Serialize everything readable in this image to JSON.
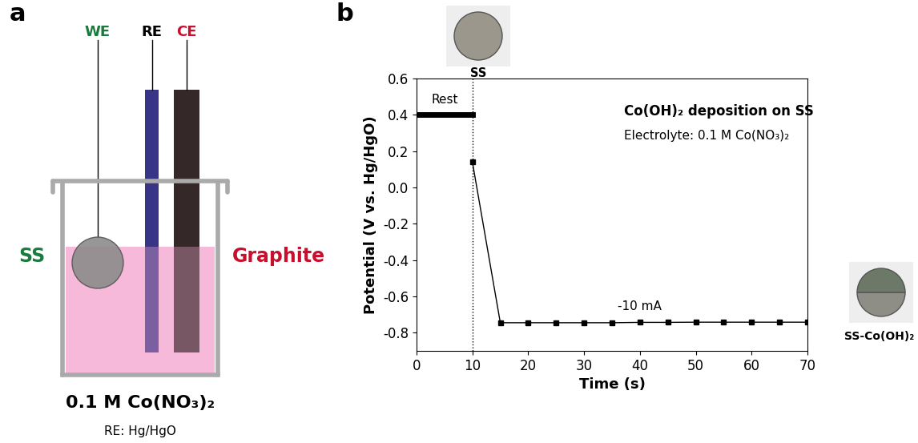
{
  "panel_a": {
    "label": "a",
    "electrode_labels": [
      "WE",
      "RE",
      "CE"
    ],
    "working_electrode": "SS",
    "counter_electrode": "Graphite",
    "electrolyte": "0.1 M Co(NO₃)₂",
    "reference": "RE: Hg/HgO"
  },
  "chart_data": {
    "panel_label": "b",
    "type": "line",
    "title": "Co(OH)₂ deposition on SS",
    "subtitle": "Electrolyte: 0.1 M Co(NO₃)₂",
    "x_label": "Time (s)",
    "y_label": "Potential (V vs. Hg/HgO)",
    "xlim": [
      0,
      70
    ],
    "ylim": [
      -0.9,
      0.6
    ],
    "xticks": [
      0,
      10,
      20,
      30,
      40,
      50,
      60,
      70
    ],
    "yticks": [
      -0.8,
      -0.6,
      -0.4,
      -0.2,
      {
        "value": 0,
        "label": "0.0"
      },
      0.2,
      0.4,
      0.6
    ],
    "series": [
      {
        "x": [
          0,
          10
        ],
        "values": [
          0.4,
          0.4
        ],
        "color": "#000000",
        "marker": "none",
        "line_style": "solid"
      },
      {
        "x": [
          10,
          15,
          20,
          25,
          30,
          35,
          40,
          45,
          50,
          55,
          60,
          65,
          70
        ],
        "values": [
          0.14,
          -0.745,
          -0.745,
          -0.745,
          -0.745,
          -0.745,
          -0.743,
          -0.743,
          -0.742,
          -0.742,
          -0.742,
          -0.742,
          -0.742
        ],
        "color": "#000000",
        "marker": "square",
        "line_style": "solid"
      }
    ],
    "annotations": [
      "Rest",
      "-10 mA"
    ],
    "reference_lines": {
      "x": [
        10
      ]
    },
    "images": [
      "SS",
      "SS-Co(OH)₂"
    ]
  }
}
